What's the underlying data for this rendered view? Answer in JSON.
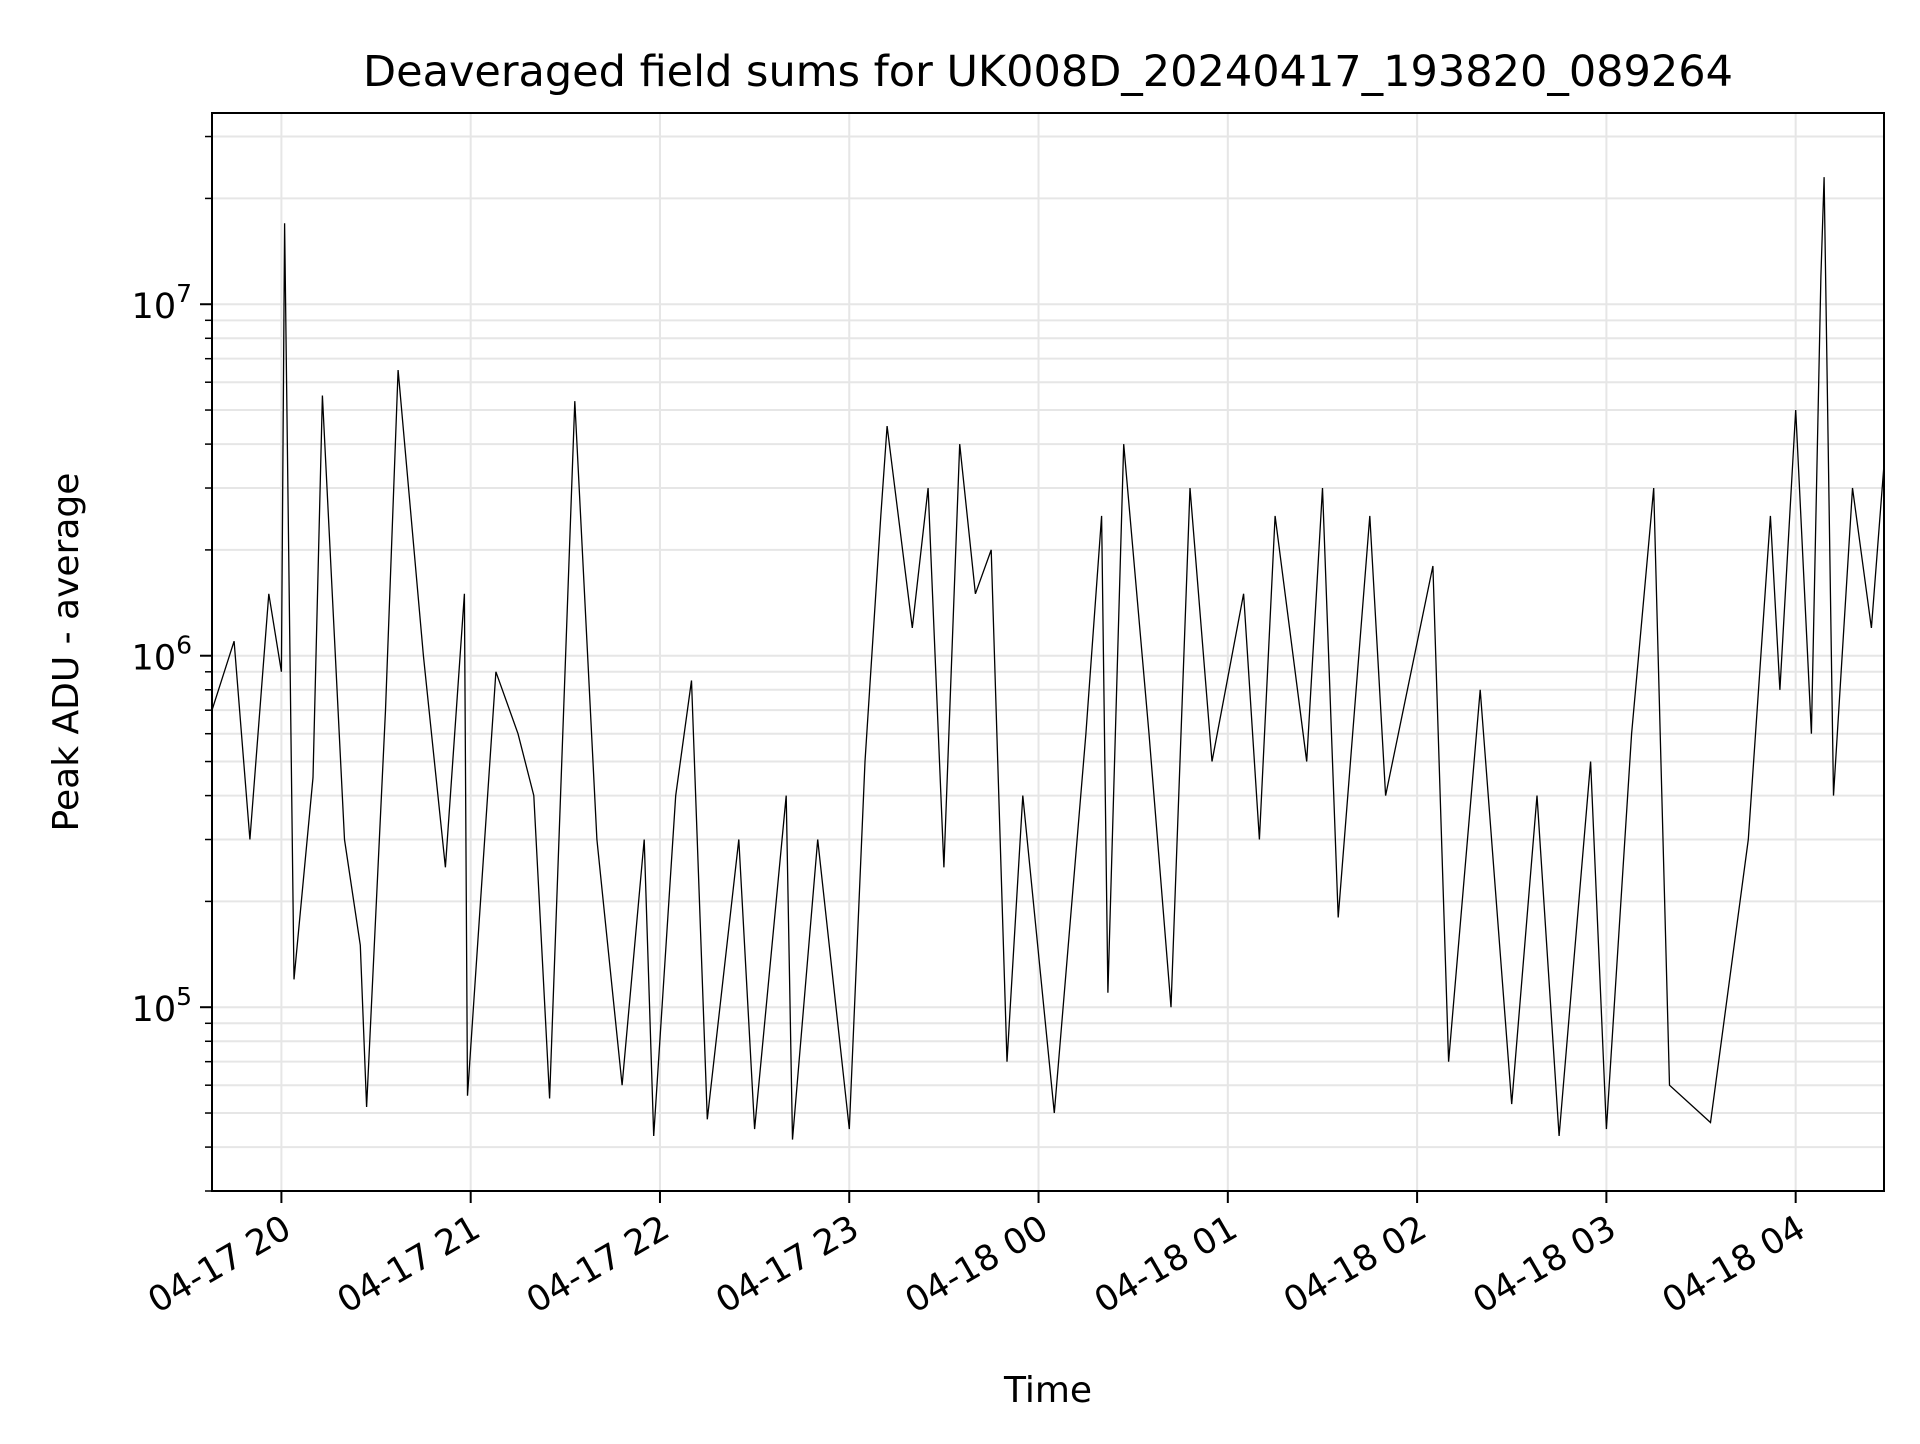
{
  "chart_data": {
    "type": "line",
    "title": "Deaveraged field sums for UK008D_20240417_193820_089264",
    "xlabel": "Time",
    "ylabel": "Peak ADU - average",
    "yscale": "log",
    "grid": true,
    "xlim": [
      "2024-04-17 19:38",
      "2024-04-18 04:28"
    ],
    "ylim": [
      30000,
      35000000
    ],
    "x_ticks": [
      {
        "t": "2024-04-17 20:00",
        "label": "04-17 20"
      },
      {
        "t": "2024-04-17 21:00",
        "label": "04-17 21"
      },
      {
        "t": "2024-04-17 22:00",
        "label": "04-17 22"
      },
      {
        "t": "2024-04-17 23:00",
        "label": "04-17 23"
      },
      {
        "t": "2024-04-18 00:00",
        "label": "04-18 00"
      },
      {
        "t": "2024-04-18 01:00",
        "label": "04-18 01"
      },
      {
        "t": "2024-04-18 02:00",
        "label": "04-18 02"
      },
      {
        "t": "2024-04-18 03:00",
        "label": "04-18 03"
      },
      {
        "t": "2024-04-18 04:00",
        "label": "04-18 04"
      }
    ],
    "y_ticks": [
      {
        "value": 100000,
        "base": "10",
        "exp": "5"
      },
      {
        "value": 1000000,
        "base": "10",
        "exp": "6"
      },
      {
        "value": 10000000,
        "base": "10",
        "exp": "7"
      }
    ],
    "series": [
      {
        "color": "#000000",
        "points": [
          [
            "2024-04-17 19:38",
            700000
          ],
          [
            "2024-04-17 19:45",
            1100000
          ],
          [
            "2024-04-17 19:50",
            300000
          ],
          [
            "2024-04-17 19:56",
            1500000
          ],
          [
            "2024-04-17 20:00",
            900000
          ],
          [
            "2024-04-17 20:01",
            17000000
          ],
          [
            "2024-04-17 20:04",
            120000
          ],
          [
            "2024-04-17 20:10",
            450000
          ],
          [
            "2024-04-17 20:13",
            5500000
          ],
          [
            "2024-04-17 20:20",
            300000
          ],
          [
            "2024-04-17 20:25",
            150000
          ],
          [
            "2024-04-17 20:27",
            52000
          ],
          [
            "2024-04-17 20:33",
            700000
          ],
          [
            "2024-04-17 20:37",
            6500000
          ],
          [
            "2024-04-17 20:45",
            1000000
          ],
          [
            "2024-04-17 20:52",
            250000
          ],
          [
            "2024-04-17 20:58",
            1500000
          ],
          [
            "2024-04-17 20:59",
            56000
          ],
          [
            "2024-04-17 21:08",
            900000
          ],
          [
            "2024-04-17 21:15",
            600000
          ],
          [
            "2024-04-17 21:20",
            400000
          ],
          [
            "2024-04-17 21:25",
            55000
          ],
          [
            "2024-04-17 21:33",
            5300000
          ],
          [
            "2024-04-17 21:40",
            300000
          ],
          [
            "2024-04-17 21:48",
            60000
          ],
          [
            "2024-04-17 21:55",
            300000
          ],
          [
            "2024-04-17 21:58",
            43000
          ],
          [
            "2024-04-17 22:05",
            400000
          ],
          [
            "2024-04-17 22:10",
            850000
          ],
          [
            "2024-04-17 22:15",
            48000
          ],
          [
            "2024-04-17 22:25",
            300000
          ],
          [
            "2024-04-17 22:30",
            45000
          ],
          [
            "2024-04-17 22:40",
            400000
          ],
          [
            "2024-04-17 22:42",
            42000
          ],
          [
            "2024-04-17 22:50",
            300000
          ],
          [
            "2024-04-17 23:00",
            45000
          ],
          [
            "2024-04-17 23:05",
            500000
          ],
          [
            "2024-04-17 23:10",
            2500000
          ],
          [
            "2024-04-17 23:12",
            4500000
          ],
          [
            "2024-04-17 23:20",
            1200000
          ],
          [
            "2024-04-17 23:25",
            3000000
          ],
          [
            "2024-04-17 23:30",
            250000
          ],
          [
            "2024-04-17 23:35",
            4000000
          ],
          [
            "2024-04-17 23:40",
            1500000
          ],
          [
            "2024-04-17 23:45",
            2000000
          ],
          [
            "2024-04-17 23:50",
            70000
          ],
          [
            "2024-04-17 23:55",
            400000
          ],
          [
            "2024-04-18 00:05",
            50000
          ],
          [
            "2024-04-18 00:15",
            600000
          ],
          [
            "2024-04-18 00:20",
            2500000
          ],
          [
            "2024-04-18 00:22",
            110000
          ],
          [
            "2024-04-18 00:27",
            4000000
          ],
          [
            "2024-04-18 00:35",
            600000
          ],
          [
            "2024-04-18 00:42",
            100000
          ],
          [
            "2024-04-18 00:48",
            3000000
          ],
          [
            "2024-04-18 00:55",
            500000
          ],
          [
            "2024-04-18 01:05",
            1500000
          ],
          [
            "2024-04-18 01:10",
            300000
          ],
          [
            "2024-04-18 01:15",
            2500000
          ],
          [
            "2024-04-18 01:25",
            500000
          ],
          [
            "2024-04-18 01:30",
            3000000
          ],
          [
            "2024-04-18 01:35",
            180000
          ],
          [
            "2024-04-18 01:45",
            2500000
          ],
          [
            "2024-04-18 01:50",
            400000
          ],
          [
            "2024-04-18 02:05",
            1800000
          ],
          [
            "2024-04-18 02:10",
            70000
          ],
          [
            "2024-04-18 02:20",
            800000
          ],
          [
            "2024-04-18 02:30",
            53000
          ],
          [
            "2024-04-18 02:38",
            400000
          ],
          [
            "2024-04-18 02:45",
            43000
          ],
          [
            "2024-04-18 02:55",
            500000
          ],
          [
            "2024-04-18 03:00",
            45000
          ],
          [
            "2024-04-18 03:08",
            600000
          ],
          [
            "2024-04-18 03:15",
            3000000
          ],
          [
            "2024-04-18 03:20",
            60000
          ],
          [
            "2024-04-18 03:33",
            47000
          ],
          [
            "2024-04-18 03:45",
            300000
          ],
          [
            "2024-04-18 03:52",
            2500000
          ],
          [
            "2024-04-18 03:55",
            800000
          ],
          [
            "2024-04-18 04:00",
            5000000
          ],
          [
            "2024-04-18 04:05",
            600000
          ],
          [
            "2024-04-18 04:08",
            12000000
          ],
          [
            "2024-04-18 04:09",
            23000000
          ],
          [
            "2024-04-18 04:12",
            400000
          ],
          [
            "2024-04-18 04:18",
            3000000
          ],
          [
            "2024-04-18 04:24",
            1200000
          ],
          [
            "2024-04-18 04:28",
            3500000
          ]
        ]
      }
    ]
  }
}
